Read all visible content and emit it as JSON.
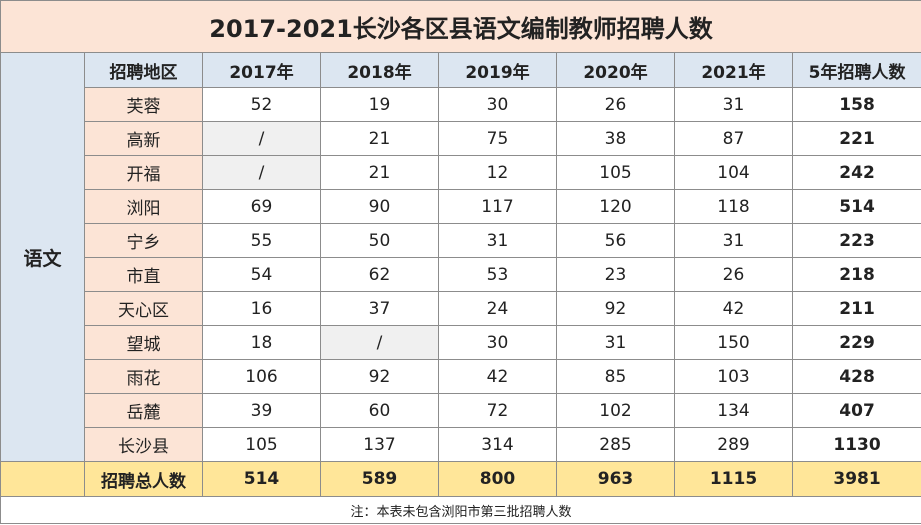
{
  "title": "2017-2021长沙各区县语文编制教师招聘人数",
  "table": {
    "subject": "语文",
    "header": [
      "招聘地区",
      "2017年",
      "2018年",
      "2019年",
      "2020年",
      "2021年",
      "5年招聘人数"
    ],
    "rows": [
      [
        "芙蓉",
        52,
        19,
        30,
        26,
        31,
        158
      ],
      [
        "高新",
        "/",
        21,
        75,
        38,
        87,
        221
      ],
      [
        "开福",
        "/",
        21,
        12,
        105,
        104,
        242
      ],
      [
        "浏阳",
        69,
        90,
        117,
        120,
        118,
        514
      ],
      [
        "宁乡",
        55,
        50,
        31,
        56,
        31,
        223
      ],
      [
        "市直",
        54,
        62,
        53,
        23,
        26,
        218
      ],
      [
        "天心区",
        16,
        37,
        24,
        92,
        42,
        211
      ],
      [
        "望城",
        18,
        "/",
        30,
        31,
        150,
        229
      ],
      [
        "雨花",
        106,
        92,
        42,
        85,
        103,
        428
      ],
      [
        "岳麓",
        39,
        60,
        72,
        102,
        134,
        407
      ],
      [
        "长沙县",
        105,
        137,
        314,
        285,
        289,
        1130
      ]
    ],
    "total": [
      "招聘总人数",
      514,
      589,
      800,
      963,
      1115,
      3981
    ]
  },
  "note": "注：本表未包含浏阳市第三批招聘人数"
}
